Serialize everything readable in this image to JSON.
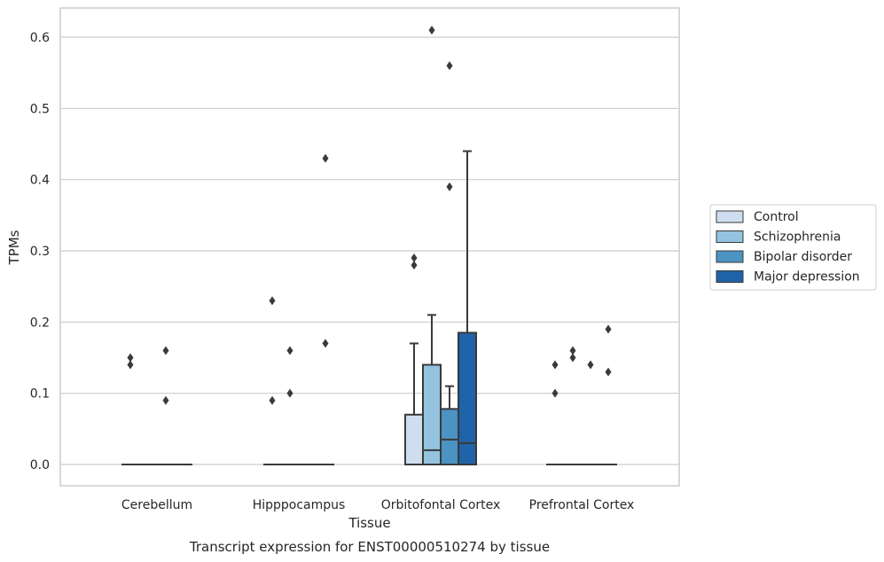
{
  "chart_data": {
    "type": "box",
    "title": "Transcript expression for ENST00000510274 by tissue",
    "xlabel": "Tissue",
    "ylabel": "TPMs",
    "ylim": [
      -0.03,
      0.64
    ],
    "yticks": [
      "0.0",
      "0.1",
      "0.2",
      "0.3",
      "0.4",
      "0.5",
      "0.6"
    ],
    "categories": [
      "Cerebellum",
      "Hipppocampus",
      "Orbitofontal Cortex",
      "Prefrontal Cortex"
    ],
    "grid": true,
    "legend_position": "right",
    "series": [
      {
        "name": "Control",
        "color": "#cfdeef",
        "boxes": [
          {
            "q1": 0,
            "median": 0,
            "q3": 0,
            "whisker_low": 0,
            "whisker_high": 0,
            "outliers": [
              0.15,
              0.14
            ]
          },
          {
            "q1": 0,
            "median": 0,
            "q3": 0,
            "whisker_low": 0,
            "whisker_high": 0,
            "outliers": [
              0.23,
              0.09
            ]
          },
          {
            "q1": 0,
            "median": 0,
            "q3": 0.07,
            "whisker_low": 0,
            "whisker_high": 0.17,
            "outliers": [
              0.29,
              0.28
            ]
          },
          {
            "q1": 0,
            "median": 0,
            "q3": 0,
            "whisker_low": 0,
            "whisker_high": 0,
            "outliers": [
              0.14,
              0.1
            ]
          }
        ]
      },
      {
        "name": "Schizophrenia",
        "color": "#93c3df",
        "boxes": [
          {
            "q1": 0,
            "median": 0,
            "q3": 0,
            "whisker_low": 0,
            "whisker_high": 0,
            "outliers": []
          },
          {
            "q1": 0,
            "median": 0,
            "q3": 0,
            "whisker_low": 0,
            "whisker_high": 0,
            "outliers": [
              0.16,
              0.1
            ]
          },
          {
            "q1": 0,
            "median": 0.02,
            "q3": 0.14,
            "whisker_low": 0,
            "whisker_high": 0.21,
            "outliers": [
              0.61
            ]
          },
          {
            "q1": 0,
            "median": 0,
            "q3": 0,
            "whisker_low": 0,
            "whisker_high": 0,
            "outliers": [
              0.16,
              0.15
            ]
          }
        ]
      },
      {
        "name": "Bipolar disorder",
        "color": "#4b93c3",
        "boxes": [
          {
            "q1": 0,
            "median": 0,
            "q3": 0,
            "whisker_low": 0,
            "whisker_high": 0,
            "outliers": [
              0.16,
              0.09
            ]
          },
          {
            "q1": 0,
            "median": 0,
            "q3": 0,
            "whisker_low": 0,
            "whisker_high": 0,
            "outliers": []
          },
          {
            "q1": 0,
            "median": 0.035,
            "q3": 0.078,
            "whisker_low": 0,
            "whisker_high": 0.11,
            "outliers": [
              0.56,
              0.39
            ]
          },
          {
            "q1": 0,
            "median": 0,
            "q3": 0,
            "whisker_low": 0,
            "whisker_high": 0,
            "outliers": [
              0.14
            ]
          }
        ]
      },
      {
        "name": "Major depression",
        "color": "#1f63a8",
        "boxes": [
          {
            "q1": 0,
            "median": 0,
            "q3": 0,
            "whisker_low": 0,
            "whisker_high": 0,
            "outliers": []
          },
          {
            "q1": 0,
            "median": 0,
            "q3": 0,
            "whisker_low": 0,
            "whisker_high": 0,
            "outliers": [
              0.43,
              0.17
            ]
          },
          {
            "q1": 0,
            "median": 0.03,
            "q3": 0.185,
            "whisker_low": 0,
            "whisker_high": 0.44,
            "outliers": []
          },
          {
            "q1": 0,
            "median": 0,
            "q3": 0,
            "whisker_low": 0,
            "whisker_high": 0,
            "outliers": [
              0.19,
              0.13
            ]
          }
        ]
      }
    ]
  }
}
